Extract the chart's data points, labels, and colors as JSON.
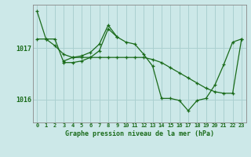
{
  "title": "Graphe pression niveau de la mer (hPa)",
  "bg_color": "#cce8e8",
  "grid_color": "#aad0d0",
  "line_color": "#1a6b1a",
  "ylim": [
    1015.55,
    1017.85
  ],
  "yticks": [
    1016,
    1017
  ],
  "xlim": [
    -0.5,
    23.5
  ],
  "xticks": [
    0,
    1,
    2,
    3,
    4,
    5,
    6,
    7,
    8,
    9,
    10,
    11,
    12,
    13,
    14,
    15,
    16,
    17,
    18,
    19,
    20,
    21,
    22,
    23
  ],
  "series1": [
    1017.72,
    1017.18,
    1017.18,
    1016.72,
    1016.72,
    1016.75,
    1016.82,
    1016.95,
    1017.38,
    1017.22,
    1017.12,
    1017.08,
    1016.88,
    1016.65,
    1016.02,
    1016.02,
    1015.98,
    1015.78,
    1015.98,
    1016.02,
    1016.28,
    1016.68,
    1017.12,
    1017.18
  ],
  "series2": [
    1017.18,
    1017.18,
    1017.05,
    1016.88,
    1016.82,
    1016.82,
    1016.82,
    1016.82,
    1016.82,
    1016.82,
    1016.82,
    1016.82,
    1016.82,
    1016.78,
    1016.72,
    1016.62,
    1016.52,
    1016.42,
    1016.32,
    1016.22,
    1016.15,
    1016.12,
    1016.12,
    1017.18
  ],
  "series3_x": [
    3,
    4,
    5,
    6,
    7,
    8,
    9
  ],
  "series3_y": [
    1016.75,
    1016.82,
    1016.85,
    1016.92,
    1017.08,
    1017.45,
    1017.22
  ]
}
